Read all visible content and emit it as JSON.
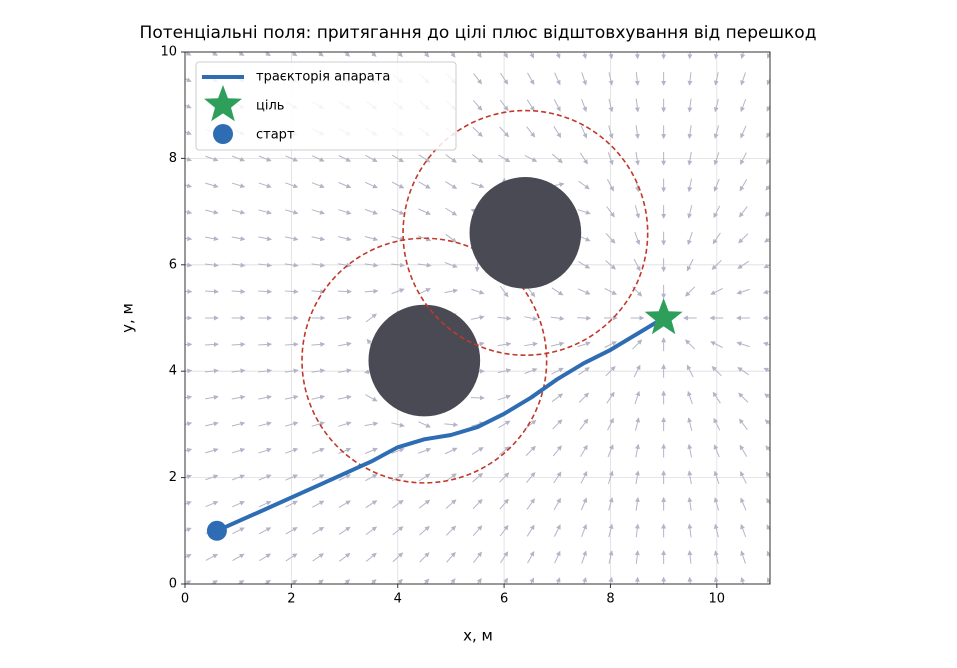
{
  "chart_data": {
    "type": "potential-field",
    "title": "Потенціальні поля: притягання до цілі плюс відштовхування від перешкод",
    "xlabel": "x, м",
    "ylabel": "y, м",
    "xlim": [
      0,
      11
    ],
    "ylim": [
      0,
      10
    ],
    "xticks": [
      0,
      2,
      4,
      6,
      8,
      10
    ],
    "yticks": [
      0,
      2,
      4,
      6,
      8,
      10
    ],
    "grid": true,
    "legend": "upper left",
    "trajectory": {
      "name": "траєкторія апарата",
      "color": "#2e6db4",
      "x": [
        0.6,
        1.5,
        2.5,
        3.5,
        4.0,
        4.5,
        5.0,
        5.5,
        6.0,
        6.5,
        7.0,
        7.5,
        8.0,
        8.5,
        9.0
      ],
      "y": [
        1.0,
        1.4,
        1.85,
        2.3,
        2.57,
        2.72,
        2.8,
        2.95,
        3.2,
        3.5,
        3.85,
        4.15,
        4.4,
        4.7,
        5.0
      ]
    },
    "goal": {
      "name": "ціль",
      "color": "#2e9e5b",
      "x": 9,
      "y": 5
    },
    "start": {
      "name": "старт",
      "color": "#2e6db4",
      "x": 0.6,
      "y": 1.0
    },
    "obstacles": [
      {
        "x": 4.5,
        "y": 4.2,
        "radius": 1.05,
        "influence_radius": 2.3
      },
      {
        "x": 6.4,
        "y": 6.6,
        "radius": 1.05,
        "influence_radius": 2.3
      }
    ],
    "obstacle_color": "#4a4a55",
    "influence_color": "#c0392b",
    "field_color": "#b4b4c8"
  }
}
